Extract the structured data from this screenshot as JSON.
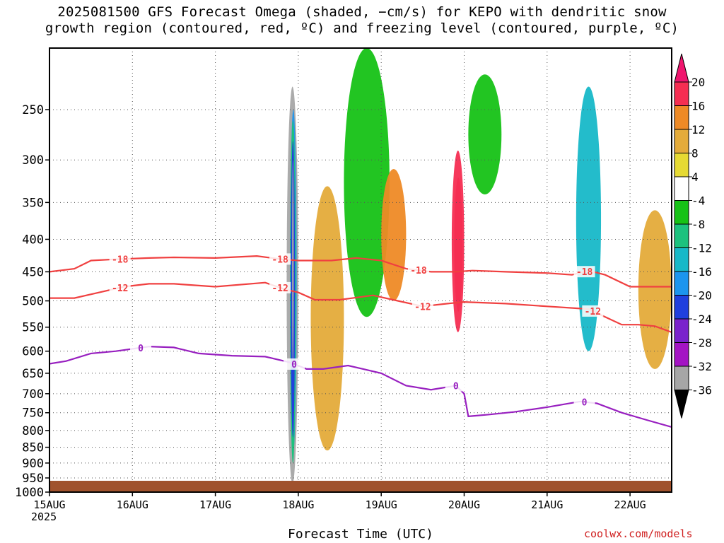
{
  "title": {
    "line1": "2025081500 GFS Forecast Omega (shaded, −cm/s) for KEPO with dendritic snow",
    "line2": "growth region (contoured, red, ºC) and freezing level (contoured, purple, ºC)"
  },
  "xlabel": "Forecast Time (UTC)",
  "credit": "coolwx.com/models",
  "year_label": "2025",
  "chart_data": {
    "type": "heatmap",
    "x_axis": {
      "unit": "forecast day",
      "ticks": [
        "15AUG",
        "16AUG",
        "17AUG",
        "18AUG",
        "19AUG",
        "20AUG",
        "21AUG",
        "22AUG"
      ],
      "range_days": [
        0,
        7.5
      ]
    },
    "y_axis": {
      "unit": "hPa",
      "ticks": [
        250,
        300,
        350,
        400,
        450,
        500,
        550,
        600,
        650,
        700,
        750,
        800,
        850,
        900,
        950,
        1000
      ],
      "range": [
        1000,
        200
      ],
      "grid": "dotted"
    },
    "colorbar": {
      "labels": [
        20,
        16,
        12,
        8,
        4,
        -4,
        -8,
        -12,
        -16,
        -20,
        -24,
        -28,
        -32,
        -36
      ],
      "bins": [
        {
          "from": 16,
          "to": 20,
          "color": "#f52e52"
        },
        {
          "from": 12,
          "to": 16,
          "color": "#ee8a26"
        },
        {
          "from": 8,
          "to": 12,
          "color": "#e4ab3a"
        },
        {
          "from": 4,
          "to": 8,
          "color": "#e6da33"
        },
        {
          "from": -4,
          "to": 4,
          "color": "#ffffff"
        },
        {
          "from": -8,
          "to": -4,
          "color": "#16c216"
        },
        {
          "from": -12,
          "to": -8,
          "color": "#1cc27e"
        },
        {
          "from": -16,
          "to": -12,
          "color": "#17b8c8"
        },
        {
          "from": -20,
          "to": -16,
          "color": "#1c95ee"
        },
        {
          "from": -24,
          "to": -20,
          "color": "#2040de"
        },
        {
          "from": -28,
          "to": -24,
          "color": "#7a22cc"
        },
        {
          "from": -32,
          "to": -28,
          "color": "#a414c4"
        },
        {
          "from": -36,
          "to": -32,
          "color": "#a6a6a6"
        }
      ],
      "top_arrow_color": "#f0156e",
      "bottom_arrow_color": "#000000"
    },
    "shaded_features": [
      {
        "label": "strong rising motion 17-18 Aug",
        "days": [
          2.86,
          3.0
        ],
        "p": [
          230,
          970
        ],
        "value": -36
      },
      {
        "label": "rising motion core",
        "days": [
          2.9,
          2.98
        ],
        "p": [
          250,
          860
        ],
        "value": -20
      },
      {
        "label": "sinking motion 18 Aug",
        "days": [
          3.15,
          3.55
        ],
        "p": [
          330,
          860
        ],
        "value": 8
      },
      {
        "label": "rising motion 18 Aug",
        "days": [
          3.55,
          4.1
        ],
        "p": [
          200,
          530
        ],
        "value": -8
      },
      {
        "label": "sinking motion 19 Aug",
        "days": [
          4.0,
          4.3
        ],
        "p": [
          310,
          500
        ],
        "value": 12
      },
      {
        "label": "sinking max 19-20 Aug",
        "days": [
          4.85,
          5.0
        ],
        "p": [
          290,
          560
        ],
        "value": 20
      },
      {
        "label": "rising motion 20 Aug",
        "days": [
          5.05,
          5.45
        ],
        "p": [
          220,
          340
        ],
        "value": -8
      },
      {
        "label": "rising motion 21 Aug",
        "days": [
          6.35,
          6.65
        ],
        "p": [
          230,
          600
        ],
        "value": -16
      },
      {
        "label": "sinking motion 22 Aug",
        "days": [
          7.1,
          7.5
        ],
        "p": [
          360,
          640
        ],
        "value": 8
      }
    ],
    "contours": [
      {
        "level": -18,
        "color": "#f04040",
        "label": "-18",
        "points": [
          [
            0,
            450
          ],
          [
            0.3,
            445
          ],
          [
            0.5,
            432
          ],
          [
            0.8,
            430
          ],
          [
            1.2,
            428
          ],
          [
            1.5,
            427
          ],
          [
            2.0,
            428
          ],
          [
            2.5,
            425
          ],
          [
            2.8,
            430
          ],
          [
            3.0,
            432
          ],
          [
            3.4,
            432
          ],
          [
            3.7,
            428
          ],
          [
            4.0,
            432
          ],
          [
            4.3,
            445
          ],
          [
            4.6,
            450
          ],
          [
            4.9,
            450
          ],
          [
            5.1,
            448
          ],
          [
            5.5,
            450
          ],
          [
            6.0,
            452
          ],
          [
            6.3,
            455
          ],
          [
            6.5,
            448
          ],
          [
            6.7,
            455
          ],
          [
            7.0,
            475
          ],
          [
            7.5,
            475
          ]
        ],
        "label_days": [
          0.85,
          2.78,
          4.45,
          6.45
        ]
      },
      {
        "level": -12,
        "color": "#f04040",
        "label": "-12",
        "points": [
          [
            0,
            495
          ],
          [
            0.3,
            495
          ],
          [
            0.6,
            485
          ],
          [
            0.9,
            475
          ],
          [
            1.2,
            470
          ],
          [
            1.5,
            470
          ],
          [
            2.0,
            475
          ],
          [
            2.6,
            468
          ],
          [
            2.85,
            480
          ],
          [
            3.0,
            485
          ],
          [
            3.2,
            498
          ],
          [
            3.5,
            498
          ],
          [
            3.9,
            490
          ],
          [
            4.2,
            500
          ],
          [
            4.5,
            510
          ],
          [
            4.8,
            505
          ],
          [
            5.0,
            502
          ],
          [
            5.5,
            505
          ],
          [
            6.0,
            510
          ],
          [
            6.5,
            515
          ],
          [
            6.7,
            530
          ],
          [
            6.9,
            545
          ],
          [
            7.1,
            545
          ],
          [
            7.3,
            548
          ],
          [
            7.5,
            560
          ]
        ],
        "label_days": [
          0.85,
          2.78,
          4.5,
          6.55
        ]
      },
      {
        "level": 0,
        "color": "#9820c0",
        "label": "0",
        "points": [
          [
            0,
            628
          ],
          [
            0.2,
            622
          ],
          [
            0.5,
            605
          ],
          [
            0.8,
            600
          ],
          [
            1.2,
            590
          ],
          [
            1.5,
            592
          ],
          [
            1.8,
            605
          ],
          [
            2.2,
            610
          ],
          [
            2.6,
            612
          ],
          [
            2.9,
            625
          ],
          [
            3.1,
            640
          ],
          [
            3.3,
            640
          ],
          [
            3.6,
            632
          ],
          [
            4.0,
            650
          ],
          [
            4.3,
            680
          ],
          [
            4.6,
            690
          ],
          [
            4.9,
            680
          ],
          [
            5.0,
            700
          ],
          [
            5.05,
            760
          ],
          [
            5.3,
            755
          ],
          [
            5.6,
            748
          ],
          [
            6.0,
            735
          ],
          [
            6.4,
            720
          ],
          [
            6.6,
            725
          ],
          [
            6.9,
            750
          ],
          [
            7.2,
            770
          ],
          [
            7.5,
            790
          ]
        ],
        "label_days": [
          1.1,
          2.95,
          4.9,
          6.45
        ]
      }
    ]
  }
}
